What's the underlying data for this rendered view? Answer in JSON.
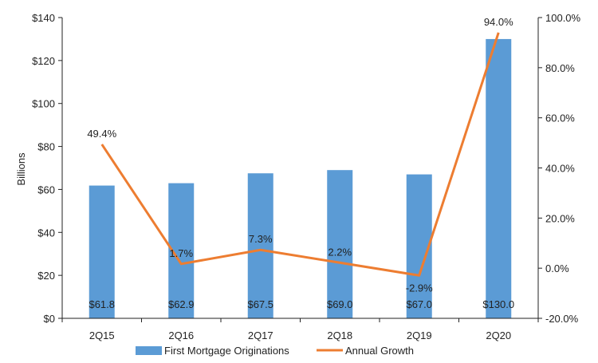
{
  "chart_data": {
    "type": "bar",
    "title": "",
    "xlabel": "",
    "ylabel": "Billions",
    "categories": [
      "2Q15",
      "2Q16",
      "2Q17",
      "2Q18",
      "2Q19",
      "2Q20"
    ],
    "series": [
      {
        "name": "First Mortgage Originations",
        "type": "bar",
        "axis": "left",
        "values": [
          61.8,
          62.9,
          67.5,
          69.0,
          67.0,
          130.0
        ],
        "labels": [
          "$61.8",
          "$62.9",
          "$67.5",
          "$69.0",
          "$67.0",
          "$130.0"
        ],
        "color": "#5b9bd5"
      },
      {
        "name": "Annual Growth",
        "type": "line",
        "axis": "right",
        "values": [
          49.4,
          1.7,
          7.3,
          2.2,
          -2.9,
          94.0
        ],
        "labels": [
          "49.4%",
          "1.7%",
          "7.3%",
          "2.2%",
          "-2.9%",
          "94.0%"
        ],
        "color": "#ed7d31"
      }
    ],
    "ylim_left": [
      0,
      140
    ],
    "yticks_left": [
      "$0",
      "$20",
      "$40",
      "$60",
      "$80",
      "$100",
      "$120",
      "$140"
    ],
    "ylim_right": [
      -20,
      100
    ],
    "yticks_right": [
      "-20.0%",
      "0.0%",
      "20.0%",
      "40.0%",
      "60.0%",
      "80.0%",
      "100.0%"
    ],
    "grid": false,
    "legend_position": "bottom"
  }
}
